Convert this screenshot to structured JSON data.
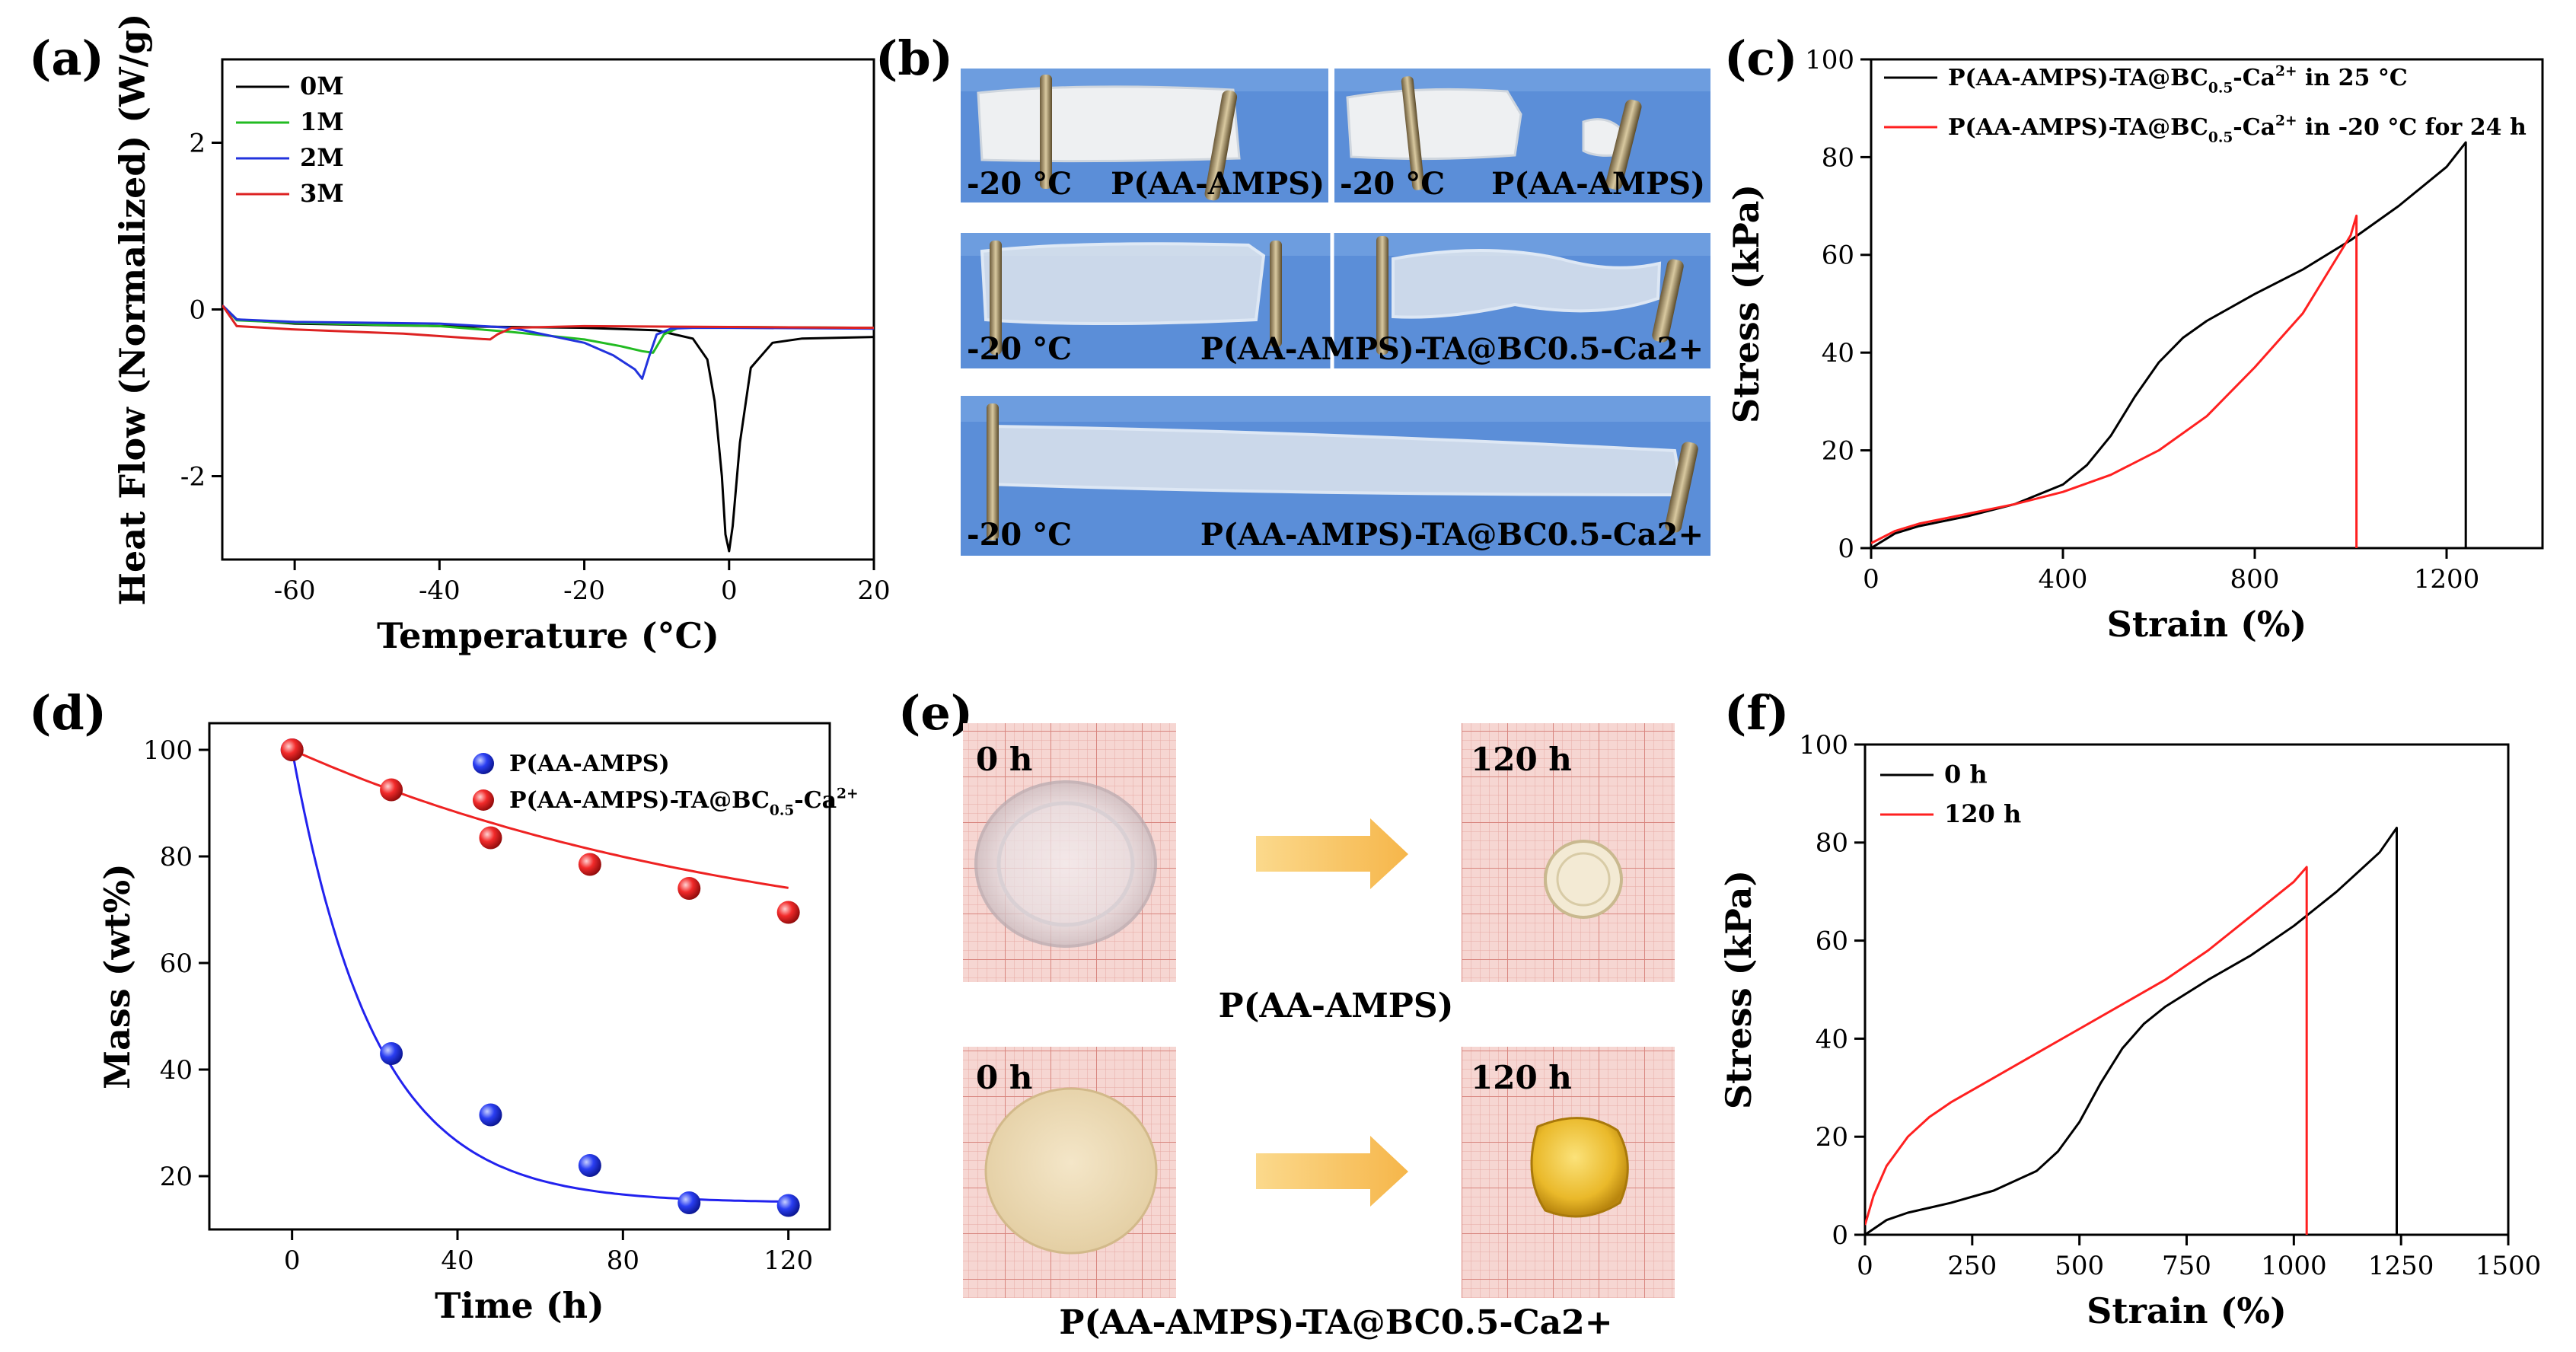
{
  "panel_labels": [
    "(a)",
    "(b)",
    "(c)",
    "(d)",
    "(e)",
    "(f)"
  ],
  "chart_data": [
    {
      "id": "a",
      "type": "line",
      "title": "",
      "xlabel": "Temperature (°C)",
      "ylabel": "Heat Flow (Normalized) (W/g)",
      "xlim": [
        -70,
        20
      ],
      "ylim": [
        -3,
        3
      ],
      "xticks": [
        -60,
        -40,
        -20,
        0,
        20
      ],
      "yticks": [
        -2,
        0,
        2
      ],
      "legend_position": "top-left",
      "series": [
        {
          "name": "0M",
          "color": "#000000",
          "x": [
            -70,
            -68,
            -60,
            -40,
            -20,
            -10,
            -5,
            -3,
            -2,
            -1,
            -0.5,
            0,
            0.5,
            1.5,
            3,
            6,
            10,
            20
          ],
          "y": [
            0.05,
            -0.12,
            -0.17,
            -0.2,
            -0.22,
            -0.25,
            -0.35,
            -0.6,
            -1.1,
            -2.0,
            -2.7,
            -2.9,
            -2.6,
            -1.6,
            -0.7,
            -0.4,
            -0.35,
            -0.33
          ]
        },
        {
          "name": "1M",
          "color": "#22bb22",
          "x": [
            -70,
            -68,
            -60,
            -40,
            -30,
            -20,
            -15,
            -12,
            -10.5,
            -9,
            -7,
            -5,
            0,
            20
          ],
          "y": [
            0.05,
            -0.13,
            -0.16,
            -0.2,
            -0.27,
            -0.36,
            -0.44,
            -0.5,
            -0.52,
            -0.3,
            -0.22,
            -0.21,
            -0.21,
            -0.22
          ]
        },
        {
          "name": "2M",
          "color": "#2233dd",
          "x": [
            -70,
            -68,
            -60,
            -40,
            -30,
            -20,
            -16,
            -13,
            -12,
            -11,
            -10,
            -8,
            -5,
            0,
            20
          ],
          "y": [
            0.05,
            -0.12,
            -0.15,
            -0.17,
            -0.22,
            -0.4,
            -0.55,
            -0.72,
            -0.83,
            -0.55,
            -0.3,
            -0.23,
            -0.22,
            -0.22,
            -0.23
          ]
        },
        {
          "name": "3M",
          "color": "#dd2222",
          "x": [
            -70,
            -68,
            -60,
            -45,
            -40,
            -35,
            -33,
            -32,
            -30,
            -20,
            0,
            20
          ],
          "y": [
            0.05,
            -0.2,
            -0.24,
            -0.29,
            -0.32,
            -0.35,
            -0.36,
            -0.3,
            -0.22,
            -0.2,
            -0.21,
            -0.22
          ]
        }
      ]
    },
    {
      "id": "c",
      "type": "line",
      "title": "",
      "xlabel": "Strain (%)",
      "ylabel": "Stress (kPa)",
      "xlim": [
        0,
        1400
      ],
      "ylim": [
        0,
        100
      ],
      "xticks": [
        0,
        400,
        800,
        1200
      ],
      "yticks": [
        0,
        20,
        40,
        60,
        80,
        100
      ],
      "legend_position": "top-left",
      "series": [
        {
          "name": "P(AA-AMPS)-TA@BC0.5-Ca2+ in 25 °C",
          "color": "#000000",
          "x": [
            0,
            50,
            100,
            200,
            300,
            400,
            450,
            500,
            550,
            600,
            650,
            700,
            800,
            900,
            1000,
            1100,
            1200,
            1240,
            1240
          ],
          "y": [
            0,
            3,
            4.5,
            6.5,
            9,
            13,
            17,
            23,
            31,
            38,
            43,
            46.5,
            52,
            57,
            63,
            70,
            78,
            83,
            0
          ]
        },
        {
          "name": "P(AA-AMPS)-TA@BC0.5-Ca2+ in -20 °C for 24 h",
          "color": "#ff2020",
          "x": [
            0,
            50,
            100,
            200,
            300,
            400,
            500,
            600,
            700,
            800,
            900,
            1000,
            1012,
            1012
          ],
          "y": [
            1,
            3.5,
            5,
            7,
            9,
            11.5,
            15,
            20,
            27,
            37,
            48,
            64,
            68,
            0
          ]
        }
      ]
    },
    {
      "id": "d",
      "type": "scatter",
      "title": "",
      "xlabel": "Time (h)",
      "ylabel": "Mass (wt%)",
      "xlim": [
        -20,
        130
      ],
      "ylim": [
        10,
        105
      ],
      "xticks": [
        0,
        40,
        80,
        120
      ],
      "yticks": [
        20,
        40,
        60,
        80,
        100
      ],
      "legend_position": "top-right",
      "series": [
        {
          "name": "P(AA-AMPS)",
          "color": "#2222ee",
          "x": [
            0,
            24,
            48,
            72,
            96,
            120
          ],
          "y": [
            100,
            43,
            31.5,
            22,
            15,
            14.5
          ],
          "fit": {
            "form": "exp",
            "a": 15,
            "b": 85,
            "tau": 20
          }
        },
        {
          "name": "P(AA-AMPS)-TA@BC0.5-Ca2+",
          "color": "#ee2222",
          "x": [
            0,
            24,
            48,
            72,
            96,
            120
          ],
          "y": [
            100,
            92.5,
            83.5,
            78.5,
            74,
            69.5
          ],
          "fit": {
            "form": "exp",
            "a": 60,
            "b": 40,
            "tau": 115
          }
        }
      ]
    },
    {
      "id": "f",
      "type": "line",
      "title": "",
      "xlabel": "Strain (%)",
      "ylabel": "Stress (kPa)",
      "xlim": [
        0,
        1500
      ],
      "ylim": [
        0,
        100
      ],
      "xticks": [
        0,
        250,
        500,
        750,
        1000,
        1250,
        1500
      ],
      "yticks": [
        0,
        20,
        40,
        60,
        80,
        100
      ],
      "legend_position": "top-left",
      "series": [
        {
          "name": "0 h",
          "color": "#000000",
          "x": [
            0,
            50,
            100,
            200,
            300,
            400,
            450,
            500,
            550,
            600,
            650,
            700,
            800,
            900,
            1000,
            1100,
            1200,
            1240,
            1240
          ],
          "y": [
            0,
            3,
            4.5,
            6.5,
            9,
            13,
            17,
            23,
            31,
            38,
            43,
            46.5,
            52,
            57,
            63,
            70,
            78,
            83,
            0
          ]
        },
        {
          "name": "120 h",
          "color": "#ff2020",
          "x": [
            0,
            20,
            50,
            100,
            150,
            200,
            300,
            400,
            500,
            600,
            700,
            800,
            900,
            1000,
            1030,
            1030
          ],
          "y": [
            2,
            8,
            14,
            20,
            24,
            27,
            32,
            37,
            42,
            47,
            52,
            58,
            65,
            72,
            75,
            0
          ]
        }
      ]
    }
  ],
  "panel_b": {
    "photos": [
      {
        "left_label": "-20 °C",
        "right_label": "P(AA-AMPS)"
      },
      {
        "left_label": "-20 °C",
        "right_label": "P(AA-AMPS)"
      },
      {
        "left_label": "-20 °C",
        "right_label": "P(AA-AMPS)-TA@BC0.5-Ca2+"
      },
      {
        "left_label": "-20 °C",
        "right_label": "P(AA-AMPS)-TA@BC0.5-Ca2+"
      }
    ]
  },
  "panel_e": {
    "row1": {
      "before": "0 h",
      "after": "120 h",
      "caption": "P(AA-AMPS)"
    },
    "row2": {
      "before": "0 h",
      "after": "120 h",
      "caption": "P(AA-AMPS)-TA@BC0.5-Ca2+"
    }
  },
  "colors": {
    "photo_background": "#5b8ed8",
    "grid_paper": "#f3c8c4",
    "arrow": "#f7c26a"
  }
}
